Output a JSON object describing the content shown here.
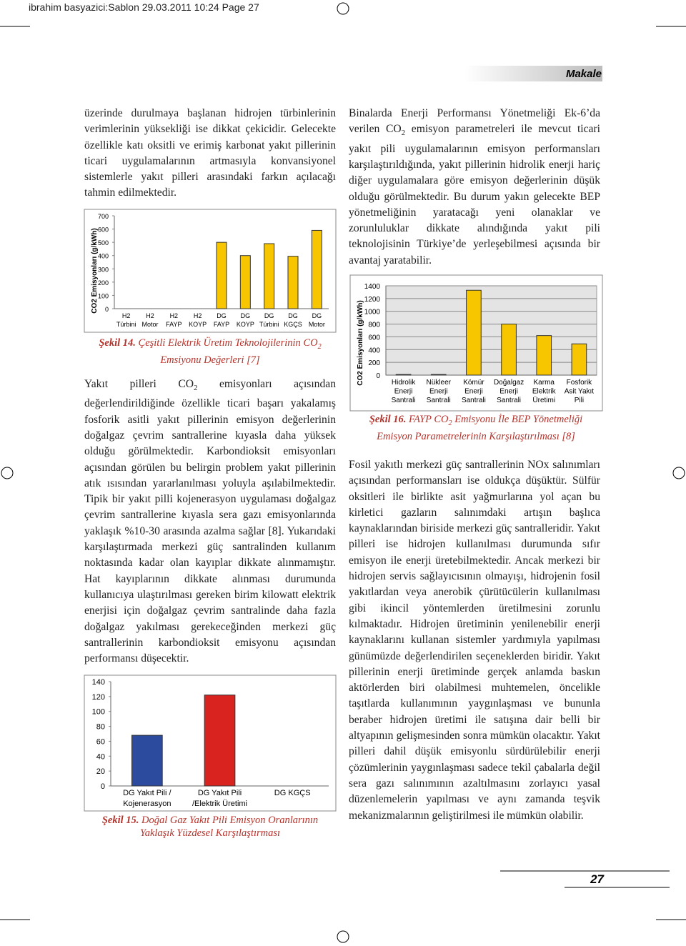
{
  "header": {
    "slug": "ibrahim basyazici:Sablon 29.03.2011 10:24 Page 27",
    "section": "Makale",
    "page_number": "27"
  },
  "left": {
    "paragraphs": [
      [
        "üzerinde durulmaya başlanan hidrojen türbinlerinin verimlerinin yüksekliği ise dikkat çekicidir. Gelecekte özellikle katı oksitli ve erimiş karbonat yakıt pillerinin ticari uygulamalarının artmasıyla konvansiyonel sistemlerle yakıt pilleri arasındaki farkın açılacağı tahmin edilmektedir."
      ],
      [
        "Yakıt pilleri CO",
        "2",
        " emisyonları açısından değerlendirildiğinde özellikle ticari başarı yakalamış fosforik asitli yakıt pillerinin emisyon değerlerinin doğalgaz çevrim santrallerine kıyasla daha yüksek olduğu görülmektedir. Karbondioksit emisyonları açısından görülen bu belirgin problem yakıt pillerinin atık ısısından yararlanılması yoluyla aşılabilmektedir. Tipik bir yakıt pilli kojenerasyon uygulaması doğalgaz çevrim santrallerine kıyasla sera gazı emisyonlarında yaklaşık %10-30 arasında azalma sağlar [8]. Yukarıdaki karşılaştırmada merkezi güç santralinden kullanım noktasında kadar olan kayıplar dikkate alınmamıştır. Hat kayıplarının dikkate alınması durumunda kullanıcıya ulaştırılması gereken birim kilowatt elektrik enerjisi için doğalgaz çevrim santralinde daha fazla doğalgaz yakılması gerekeceğinden merkezi güç santrallerinin karbondioksit emisyonu açısından performansı düşecektir."
      ]
    ]
  },
  "right": {
    "paragraphs": [
      [
        "Binalarda Enerji Performansı Yönetmeliği Ek-6’da verilen CO",
        "2",
        " emisyon parametreleri ile mevcut ticari yakıt pili uygulamalarının emisyon performansları karşılaştırıldığında, yakıt pillerinin hidrolik enerji hariç diğer uygulamalara göre emisyon değerlerinin düşük olduğu görülmektedir. Bu durum yakın gelecekte BEP yönetmeliğinin yaratacağı yeni olanaklar ve zorunluluklar dikkate alındığında yakıt pili teknolojisinin Türkiye’de yerleşebilmesi açısında bir avantaj yaratabilir."
      ],
      [
        "Fosil yakıtlı merkezi güç santrallerinin NOx salınımları açısından performansları ise oldukça düşüktür. Sülfür oksitleri ile birlikte asit yağmurlarına yol açan bu kirletici gazların salınımdaki artışın başlıca kaynaklarından biriside merkezi güç santralleridir. Yakıt pilleri ise hidrojen kullanılması durumunda sıfır emisyon ile enerji üretebilmektedir. Ancak merkezi bir hidrojen servis sağlayıcısının olmayışı, hidrojenin fosil yakıtlardan veya anerobik çürütücülerin kullanılması gibi ikincil yöntemlerden üretilmesini zorunlu kılmaktadır. Hidrojen üretiminin yenilenebilir enerji kaynaklarını kullanan sistemler yardımıyla yapılması günümüzde değerlendirilen seçeneklerden biridir. Yakıt pillerinin enerji üretiminde gerçek anlamda baskın aktörlerden biri olabilmesi muhtemelen, öncelikle taşıtlarda kullanımının yaygınlaşması ve bununla beraber hidrojen üretimi ile satışına dair belli bir altyapının gelişmesinden sonra mümkün olacaktır. Yakıt pilleri dahil düşük emisyonlu sürdürülebilir enerji çözümlerinin yaygınlaşması sadece tekil çabalarla değil sera gazı salınımının azaltılmasını zorlayıcı yasal düzenlemelerin yapılması ve aynı zamanda teşvik mekanizmalarının geliştirilmesi ile mümkün olabilir."
      ]
    ]
  },
  "chart_data": [
    {
      "type": "bar",
      "caption_label": "Şekil 14.",
      "caption": [
        "Çeşitli Elektrik Üretim Teknolojilerinin CO",
        "2",
        " Emsiyonu Değerleri [7]"
      ],
      "y_label": "CO2 Emisyonları (g/kWh)",
      "categories": [
        "H2\nTürbini",
        "H2\nMotor",
        "H2\nFAYP",
        "H2\nKOYP",
        "DG\nFAYP",
        "DG\nKOYP",
        "DG\nTürbini",
        "DG\nKGÇS",
        "DG\nMotor"
      ],
      "values": [
        0,
        0,
        0,
        0,
        500,
        400,
        490,
        395,
        590
      ],
      "color": "#f7c600",
      "ylim": [
        0,
        700
      ],
      "yticks": [
        0,
        100,
        200,
        300,
        400,
        500,
        600,
        700
      ],
      "grid": false
    },
    {
      "type": "bar",
      "caption_label": "Şekil 15.",
      "caption": [
        "Doğal Gaz Yakıt Pili Emisyon Oranlarının Yaklaşık Yüzdesel Karşılaştırması"
      ],
      "categories": [
        "DG Yakıt Pili /\nKojenerasyon",
        "DG Yakıt Pili\n/Elektrik Üretimi",
        "DG KGÇS"
      ],
      "values": [
        68,
        122,
        null
      ],
      "colors": [
        "#2d4b9e",
        "#d8231f",
        "#ffffff"
      ],
      "ylim": [
        0,
        140
      ],
      "yticks": [
        0,
        20,
        40,
        60,
        80,
        100,
        120,
        140
      ],
      "grid": false
    },
    {
      "type": "bar",
      "caption_label": "Şekil 16.",
      "caption": [
        "FAYP CO",
        "2",
        " Emisyonu İle BEP Yönetmeliği Emisyon Parametrelerinin Karşılaştırılması [8]"
      ],
      "y_label": "CO2 Emisyonları (g/kWh)",
      "categories": [
        "Hidrolik\nEnerji\nSantrali",
        "Nükleer\nEnerji\nSantrali",
        "Kömür\nEnerji\nSantrali",
        "Doğalgaz\nEnerji\nSantrali",
        "Karma\nElektrik\nÜretimi",
        "Fosforik\nAsit Yakıt\nPili"
      ],
      "values": [
        10,
        10,
        1330,
        800,
        620,
        490
      ],
      "color": "#f7c600",
      "ylim": [
        0,
        1400
      ],
      "yticks": [
        0,
        200,
        400,
        600,
        800,
        1000,
        1200,
        1400
      ],
      "grid": true
    }
  ]
}
